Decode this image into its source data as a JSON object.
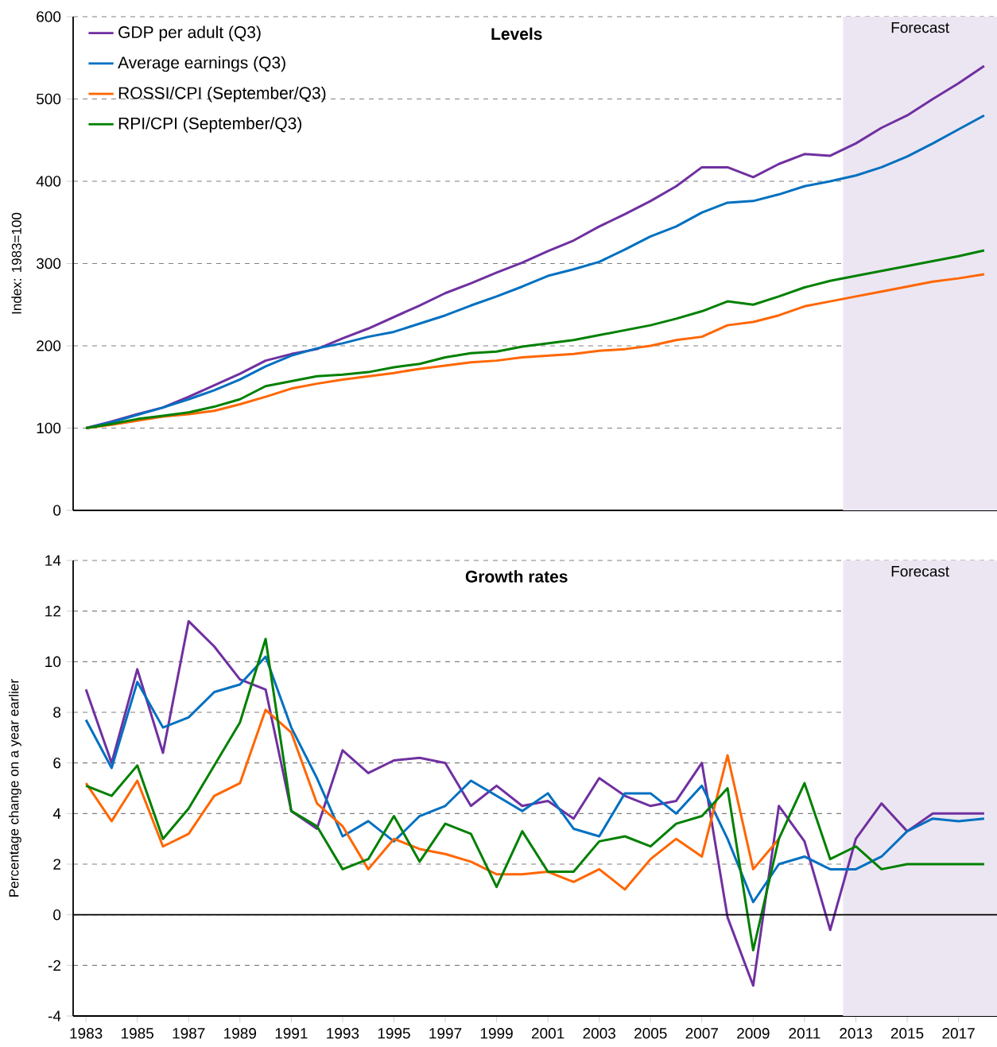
{
  "chart_data": [
    {
      "type": "line",
      "title": "Levels",
      "ylabel": "Index: 1983=100",
      "x": [
        1983,
        1984,
        1985,
        1986,
        1987,
        1988,
        1989,
        1990,
        1991,
        1992,
        1993,
        1994,
        1995,
        1996,
        1997,
        1998,
        1999,
        2000,
        2001,
        2002,
        2003,
        2004,
        2005,
        2006,
        2007,
        2008,
        2009,
        2010,
        2011,
        2012,
        2013,
        2014,
        2015,
        2016,
        2017,
        2018
      ],
      "series": [
        {
          "name": "GDP per adult (Q3)",
          "color": "#7030a0",
          "values": [
            100,
            108,
            117,
            125,
            138,
            152,
            166,
            182,
            190,
            196,
            209,
            221,
            235,
            249,
            264,
            276,
            289,
            301,
            315,
            328,
            345,
            360,
            376,
            394,
            417,
            417,
            405,
            421,
            433,
            431,
            446,
            465,
            480,
            500,
            519,
            540
          ]
        },
        {
          "name": "Average earnings (Q3)",
          "color": "#0070c0",
          "values": [
            100,
            107,
            116,
            125,
            135,
            146,
            159,
            175,
            188,
            197,
            203,
            211,
            217,
            227,
            237,
            249,
            260,
            272,
            285,
            293,
            302,
            317,
            333,
            345,
            362,
            374,
            376,
            384,
            394,
            400,
            407,
            417,
            430,
            446,
            463,
            480
          ]
        },
        {
          "name": "ROSSI/CPI (September/Q3)",
          "color": "#ff6600",
          "values": [
            100,
            104,
            109,
            114,
            117,
            121,
            129,
            138,
            148,
            154,
            159,
            163,
            167,
            172,
            176,
            180,
            182,
            186,
            188,
            190,
            194,
            196,
            200,
            207,
            211,
            225,
            229,
            237,
            248,
            254,
            260,
            266,
            272,
            278,
            282,
            287
          ]
        },
        {
          "name": "RPI/CPI (September/Q3)",
          "color": "#008000",
          "values": [
            100,
            105,
            111,
            115,
            119,
            126,
            135,
            151,
            157,
            163,
            165,
            168,
            174,
            178,
            186,
            191,
            193,
            199,
            203,
            207,
            213,
            219,
            225,
            233,
            242,
            254,
            250,
            260,
            271,
            279,
            285,
            291,
            297,
            303,
            309,
            316
          ]
        }
      ],
      "xlim": [
        1982.5,
        2018.5
      ],
      "ylim": [
        0,
        600
      ],
      "yticks": [
        0,
        100,
        200,
        300,
        400,
        500,
        600
      ],
      "tick_labels": "y",
      "grid": "y",
      "legend": "top left",
      "bands": [
        {
          "axis": "x",
          "from": 2012.5,
          "to": 2018.5,
          "label": "Forecast",
          "color": "#ece6f2"
        }
      ]
    },
    {
      "type": "line",
      "title": "Growth rates",
      "ylabel": "Percentage change on a year earlier",
      "x": [
        1983,
        1984,
        1985,
        1986,
        1987,
        1988,
        1989,
        1990,
        1991,
        1992,
        1993,
        1994,
        1995,
        1996,
        1997,
        1998,
        1999,
        2000,
        2001,
        2002,
        2003,
        2004,
        2005,
        2006,
        2007,
        2008,
        2009,
        2010,
        2011,
        2012,
        2013,
        2014,
        2015,
        2016,
        2017,
        2018
      ],
      "series": [
        {
          "color": "#7030a0",
          "values": [
            8.9,
            6.0,
            9.7,
            6.4,
            11.6,
            10.6,
            9.3,
            8.9,
            4.1,
            3.4,
            6.5,
            5.6,
            6.1,
            6.2,
            6.0,
            4.3,
            5.1,
            4.3,
            4.5,
            3.8,
            5.4,
            4.7,
            4.3,
            4.5,
            6.0,
            -0.1,
            -2.8,
            4.3,
            2.9,
            -0.6,
            3.0,
            4.4,
            3.3,
            4.0,
            4.0,
            4.0
          ]
        },
        {
          "color": "#0070c0",
          "values": [
            7.7,
            5.8,
            9.2,
            7.4,
            7.8,
            8.8,
            9.1,
            10.2,
            7.4,
            5.4,
            3.1,
            3.7,
            2.9,
            3.9,
            4.3,
            5.3,
            4.7,
            4.1,
            4.8,
            3.4,
            3.1,
            4.8,
            4.8,
            4.0,
            5.1,
            3.0,
            0.5,
            2.0,
            2.3,
            1.8,
            1.8,
            2.3,
            3.3,
            3.8,
            3.7,
            3.8
          ]
        },
        {
          "color": "#ff6600",
          "values": [
            5.2,
            3.7,
            5.3,
            2.7,
            3.2,
            4.7,
            5.2,
            8.1,
            7.2,
            4.4,
            3.5,
            1.8,
            3.0,
            2.6,
            2.4,
            2.1,
            1.6,
            1.6,
            1.7,
            1.3,
            1.8,
            1.0,
            2.2,
            3.0,
            2.3,
            6.3,
            1.8,
            3.0,
            null,
            null,
            null,
            null,
            null,
            null,
            null,
            null
          ]
        },
        {
          "color": "#008000",
          "values": [
            5.1,
            4.7,
            5.9,
            3.0,
            4.2,
            5.9,
            7.6,
            10.9,
            4.1,
            3.5,
            1.8,
            2.2,
            3.9,
            2.1,
            3.6,
            3.2,
            1.1,
            3.3,
            1.7,
            1.7,
            2.9,
            3.1,
            2.7,
            3.6,
            3.9,
            5.0,
            -1.4,
            3.0,
            5.2,
            2.2,
            2.7,
            1.8,
            2.0,
            2.0,
            2.0,
            2.0
          ]
        }
      ],
      "xlim": [
        1982.5,
        2018.5
      ],
      "xticks": [
        1983,
        1985,
        1987,
        1989,
        1991,
        1993,
        1995,
        1997,
        1999,
        2001,
        2003,
        2005,
        2007,
        2009,
        2011,
        2013,
        2015,
        2017
      ],
      "ylim": [
        -4,
        14
      ],
      "yticks": [
        -4,
        -2,
        0,
        2,
        4,
        6,
        8,
        10,
        12,
        14
      ],
      "grid": "y",
      "ref_lines": [
        {
          "axis": "y",
          "value": 0,
          "color": "#000000",
          "line_style": "solid"
        }
      ],
      "bands": [
        {
          "axis": "x",
          "from": 2012.5,
          "to": 2018.5,
          "label": "Forecast",
          "color": "#ece6f2"
        }
      ]
    }
  ]
}
